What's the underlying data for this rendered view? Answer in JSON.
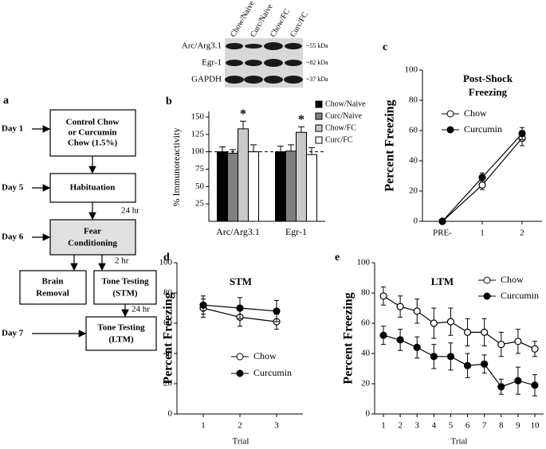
{
  "panel_a": {
    "label": "a",
    "nodes": [
      [
        "Control Chow",
        "or Curcumin",
        "Chow (1.5%)"
      ],
      [
        "Habituation"
      ],
      [
        "Fear",
        "Conditioning"
      ],
      [
        "Brain",
        "Removal"
      ],
      [
        "Tone Testing",
        "(STM)"
      ],
      [
        "Tone Testing",
        "(LTM)"
      ]
    ],
    "days": [
      "Day 1",
      "Day 5",
      "Day 6",
      "Day 7"
    ],
    "edge_labels": [
      "24 hr",
      "2 hr",
      "24 hr"
    ]
  },
  "blot": {
    "columns": [
      "Chow/Naive",
      "Curc/Naive",
      "Chow/FC",
      "Curc/FC"
    ],
    "rows": [
      {
        "name": "Arc/Arg3.1",
        "size": "~55 kDa"
      },
      {
        "name": "Egr-1",
        "size": "~82 kDa"
      },
      {
        "name": "GAPDH",
        "size": "~37 kDa"
      }
    ]
  },
  "chart_data": [
    {
      "type": "bar",
      "panel": "b",
      "y_label": "% Immunoreactivity",
      "categories": [
        "Arc/Arg3.1",
        "Egr-1"
      ],
      "series": [
        {
          "name": "Chow/Naive",
          "color": "#000000",
          "values": [
            100,
            100
          ],
          "errors": [
            7,
            8
          ]
        },
        {
          "name": "Curc/Naive",
          "color": "#808080",
          "values": [
            98,
            101
          ],
          "errors": [
            5,
            9
          ]
        },
        {
          "name": "Chow/FC",
          "color": "#c8c8c8",
          "values": [
            133,
            128
          ],
          "errors": [
            11,
            8
          ]
        },
        {
          "name": "Curc/FC",
          "color": "#ffffff",
          "values": [
            100,
            96
          ],
          "errors": [
            10,
            10
          ]
        }
      ],
      "annotations": [
        "*",
        "*"
      ],
      "hline": 100,
      "ylim": [
        0,
        150
      ],
      "yticks": [
        25,
        50,
        75,
        100,
        125,
        150
      ]
    },
    {
      "type": "line",
      "panel": "c",
      "title": [
        "Post-Shock",
        "Freezing"
      ],
      "y_label": "Percent Freezing",
      "categories": [
        "PRE-",
        "1",
        "2"
      ],
      "series": [
        {
          "name": "Chow",
          "color": "#000000",
          "marker_fill": "#ffffff",
          "values": [
            0,
            24,
            55
          ],
          "errors": [
            1,
            3,
            5
          ]
        },
        {
          "name": "Curcumin",
          "color": "#000000",
          "marker_fill": "#000000",
          "values": [
            0,
            29,
            58
          ],
          "errors": [
            1,
            3,
            4
          ]
        }
      ],
      "ylim": [
        0,
        100
      ],
      "yticks": [
        0,
        20,
        40,
        60,
        80,
        100
      ]
    },
    {
      "type": "line",
      "panel": "d",
      "title": [
        "STM"
      ],
      "y_label": "Percent Freezing",
      "x_label": "Trial",
      "categories": [
        "1",
        "2",
        "3"
      ],
      "series": [
        {
          "name": "Chow",
          "color": "#000000",
          "marker_fill": "#ffffff",
          "values": [
            70,
            64,
            61
          ],
          "errors": [
            6,
            6,
            5
          ]
        },
        {
          "name": "Curcumin",
          "color": "#000000",
          "marker_fill": "#000000",
          "values": [
            72,
            70,
            68
          ],
          "errors": [
            6,
            7,
            7
          ]
        }
      ],
      "ylim": [
        0,
        100
      ],
      "yticks": [
        0,
        20,
        40,
        60,
        80,
        100
      ]
    },
    {
      "type": "line",
      "panel": "e",
      "title": [
        "LTM"
      ],
      "y_label": "Percent Freezing",
      "x_label": "Trial",
      "categories": [
        "1",
        "2",
        "3",
        "4",
        "5",
        "6",
        "7",
        "8",
        "9",
        "10"
      ],
      "series": [
        {
          "name": "Chow",
          "color": "#000000",
          "marker_fill": "#ffffff",
          "values": [
            78,
            71,
            68,
            60,
            61,
            54,
            54,
            46,
            48,
            43
          ],
          "errors": [
            6,
            7,
            8,
            10,
            9,
            9,
            9,
            8,
            8,
            5
          ]
        },
        {
          "name": "Curcumin",
          "color": "#000000",
          "marker_fill": "#000000",
          "values": [
            52,
            49,
            44,
            38,
            38,
            32,
            33,
            18,
            22,
            19
          ],
          "errors": [
            6,
            7,
            7,
            8,
            9,
            8,
            6,
            5,
            9,
            7
          ]
        }
      ],
      "ylim": [
        0,
        100
      ],
      "yticks": [
        0,
        20,
        40,
        60,
        80,
        100
      ]
    }
  ]
}
